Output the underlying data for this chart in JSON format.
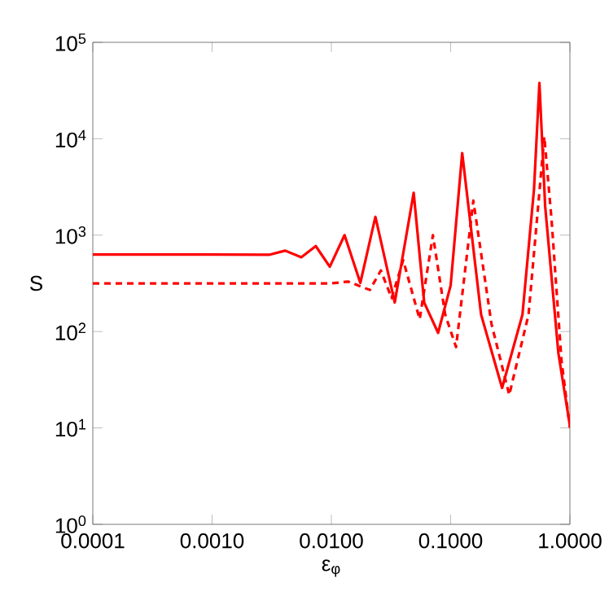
{
  "chart_data": {
    "type": "line",
    "xlabel": "ε$_{φ}$",
    "ylabel": "S",
    "log": "xy",
    "grid": false,
    "marker": "none",
    "xlim": [
      0.0001,
      1.0
    ],
    "ylim": [
      1,
      100000
    ],
    "xticks": [
      {
        "value": 0.0001,
        "label": "0.0001"
      },
      {
        "value": 0.001,
        "label": "0.0010"
      },
      {
        "value": 0.01,
        "label": "0.0100"
      },
      {
        "value": 0.1,
        "label": "0.1000"
      },
      {
        "value": 1.0,
        "label": "1.0000"
      }
    ],
    "yticks": [
      {
        "value": 1,
        "label": "10$^{0}$"
      },
      {
        "value": 10,
        "label": "10$^{1}$"
      },
      {
        "value": 100,
        "label": "10$^{2}$"
      },
      {
        "value": 1000,
        "label": "10$^{3}$"
      },
      {
        "value": 10000,
        "label": "10$^{4}$"
      },
      {
        "value": 100000,
        "label": "10$^{5}$"
      }
    ],
    "series": [
      {
        "color": "#ff0000",
        "line_style": "solid",
        "x": [
          0.0001,
          0.001,
          0.003,
          0.0041,
          0.0056,
          0.0074,
          0.0097,
          0.0129,
          0.0175,
          0.0234,
          0.034,
          0.049,
          0.06,
          0.0785,
          0.1,
          0.125,
          0.18,
          0.27,
          0.4,
          0.5,
          0.555,
          0.62,
          0.8,
          1.0
        ],
        "values": [
          630,
          630,
          625,
          690,
          590,
          770,
          470,
          1000,
          320,
          1550,
          200,
          2750,
          200,
          97,
          300,
          7100,
          150,
          26,
          150,
          3000,
          38000,
          2000,
          60,
          10.5
        ]
      },
      {
        "color": "#ff0000",
        "line_style": "dashed",
        "x": [
          0.0001,
          0.001,
          0.01,
          0.0138,
          0.021,
          0.026,
          0.032,
          0.04,
          0.055,
          0.071,
          0.09,
          0.111,
          0.155,
          0.22,
          0.31,
          0.45,
          0.61,
          0.7,
          0.85,
          1.0
        ],
        "values": [
          316,
          316,
          316,
          330,
          270,
          430,
          222,
          550,
          134,
          1000,
          150,
          69,
          2280,
          120,
          22,
          150,
          10500,
          1500,
          50,
          10
        ]
      }
    ]
  }
}
